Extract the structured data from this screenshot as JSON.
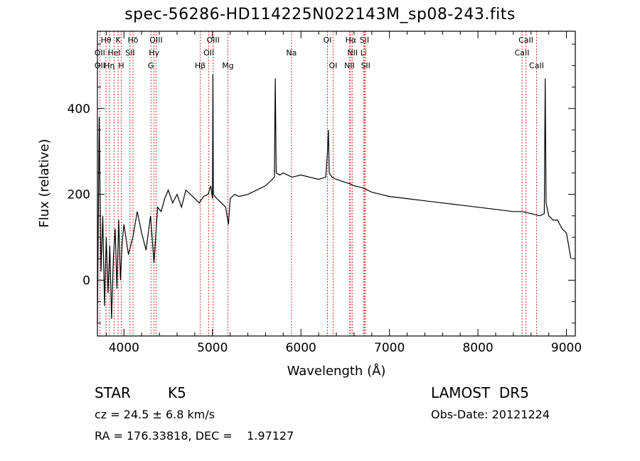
{
  "title": "spec-56286-HD114225N022143M_sp08-243.fits",
  "chart_data": {
    "type": "line",
    "xlabel": "Wavelength (Å)",
    "ylabel": "Flux (relative)",
    "xlim": [
      3700,
      9100
    ],
    "ylim": [
      -130,
      580
    ],
    "xticks": [
      4000,
      5000,
      6000,
      7000,
      8000,
      9000
    ],
    "yticks": [
      0,
      200,
      400
    ],
    "grid": false,
    "series": [
      {
        "x": [
          3700,
          3720,
          3740,
          3760,
          3780,
          3800,
          3820,
          3840,
          3860,
          3880,
          3900,
          3920,
          3940,
          3960,
          3980,
          4000,
          4050,
          4100,
          4150,
          4200,
          4250,
          4300,
          4340,
          4380,
          4420,
          4460,
          4500,
          4550,
          4600,
          4650,
          4700,
          4750,
          4800,
          4850,
          4900,
          4950,
          4980,
          5000,
          5005,
          5010,
          5050,
          5100,
          5150,
          5180,
          5200,
          5250,
          5300,
          5400,
          5500,
          5600,
          5650,
          5700,
          5710,
          5720,
          5760,
          5800,
          5900,
          6000,
          6100,
          6200,
          6280,
          6300,
          6310,
          6320,
          6350,
          6400,
          6500,
          6550,
          6600,
          6700,
          6800,
          6900,
          7000,
          7200,
          7400,
          7600,
          7800,
          8000,
          8200,
          8400,
          8500,
          8600,
          8700,
          8750,
          8760,
          8770,
          8800,
          8850,
          8900,
          8950,
          9000,
          9050
        ],
        "y": [
          -100,
          380,
          20,
          150,
          -60,
          100,
          -30,
          80,
          -90,
          50,
          120,
          -20,
          140,
          0,
          90,
          130,
          60,
          100,
          160,
          110,
          70,
          150,
          40,
          170,
          160,
          190,
          210,
          180,
          200,
          170,
          210,
          200,
          190,
          180,
          195,
          200,
          220,
          190,
          480,
          200,
          190,
          180,
          170,
          130,
          190,
          200,
          195,
          200,
          210,
          220,
          230,
          240,
          470,
          250,
          245,
          250,
          240,
          245,
          240,
          235,
          240,
          300,
          350,
          250,
          240,
          235,
          228,
          225,
          220,
          215,
          205,
          200,
          195,
          190,
          185,
          180,
          175,
          170,
          165,
          160,
          160,
          155,
          150,
          155,
          470,
          180,
          150,
          140,
          140,
          120,
          110,
          50
        ]
      }
    ],
    "lines_row1": [
      {
        "label": "Hθ",
        "x": 3797
      },
      {
        "label": "K",
        "x": 3934
      },
      {
        "label": "Hδ",
        "x": 4102
      },
      {
        "label": "OIII",
        "x": 4363
      },
      {
        "label": "OIII",
        "x": 5007
      },
      {
        "label": "OI",
        "x": 6300
      },
      {
        "label": "Hα",
        "x": 6563
      },
      {
        "label": "SII",
        "x": 6717
      },
      {
        "label": "CaII",
        "x": 8542
      }
    ],
    "lines_row2": [
      {
        "label": "OII",
        "x": 3727
      },
      {
        "label": "HeI",
        "x": 3889
      },
      {
        "label": "SII",
        "x": 4069
      },
      {
        "label": "Hγ",
        "x": 4340
      },
      {
        "label": "OII",
        "x": 4959
      },
      {
        "label": "Na",
        "x": 5893
      },
      {
        "label": "NII",
        "x": 6583
      },
      {
        "label": "Li",
        "x": 6708
      },
      {
        "label": "CaII",
        "x": 8498
      }
    ],
    "lines_row3": [
      {
        "label": "OII",
        "x": 3727
      },
      {
        "label": "Hη",
        "x": 3835
      },
      {
        "label": "H",
        "x": 3969
      },
      {
        "label": "G",
        "x": 4305
      },
      {
        "label": "Hβ",
        "x": 4861
      },
      {
        "label": "Mg",
        "x": 5175
      },
      {
        "label": "OI",
        "x": 6363
      },
      {
        "label": "NII",
        "x": 6548
      },
      {
        "label": "SII",
        "x": 6731
      },
      {
        "label": "CaII",
        "x": 8662
      }
    ],
    "line_color": "#cc0000"
  },
  "info": {
    "obj_class": "STAR",
    "subclass": "K5",
    "survey": "LAMOST  DR5",
    "cz": "cz = 24.5 ± 6.8 km/s",
    "obs_date": "Obs-Date: 20121224",
    "radec": "RA = 176.33818, DEC =    1.97127"
  }
}
